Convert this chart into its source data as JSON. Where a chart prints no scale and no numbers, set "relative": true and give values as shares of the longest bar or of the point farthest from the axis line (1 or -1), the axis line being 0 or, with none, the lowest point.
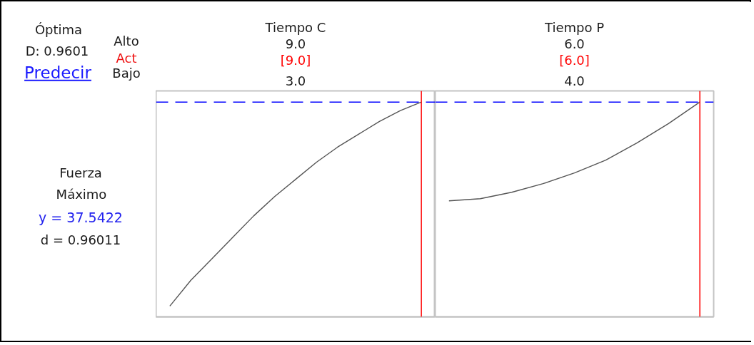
{
  "chart_data": [
    {
      "type": "other",
      "annotations": [
        "Óptima",
        "D: 0.9601",
        "Predecir",
        "Alto",
        "Act",
        "Bajo",
        "Fuerza",
        "Máximo",
        "y = 37.5422",
        "d = 0.96011"
      ]
    },
    {
      "type": "line",
      "title": "Tiempo C",
      "annotations": [
        "9.0",
        "3.0"
      ],
      "relative": true,
      "categories": [
        null,
        null,
        null,
        null,
        null,
        null,
        null,
        null,
        null,
        null,
        null,
        null,
        null
      ],
      "series": [
        {
          "color": "#555555",
          "values": [
            0.05,
            0.17,
            0.27,
            0.37,
            0.47,
            0.56,
            0.64,
            0.72,
            0.79,
            0.85,
            0.91,
            0.96,
            1
          ]
        }
      ],
      "ref_lines": [
        {
          "axis": "x",
          "label": "[9.0]",
          "color": "#ff0000"
        },
        {
          "axis": "y",
          "value": 1,
          "color": "#0000ff",
          "line_style": "dashed"
        }
      ],
      "marker": "none",
      "line_style": "solid"
    },
    {
      "type": "line",
      "title": "Tiempo P",
      "annotations": [
        "6.0",
        "4.0"
      ],
      "relative": true,
      "categories": [
        null,
        null,
        null,
        null,
        null,
        null,
        null,
        null,
        null
      ],
      "series": [
        {
          "color": "#555555",
          "values": [
            0.54,
            0.55,
            0.58,
            0.62,
            0.67,
            0.73,
            0.81,
            0.9,
            1
          ]
        }
      ],
      "ref_lines": [
        {
          "axis": "x",
          "label": "[6.0]",
          "color": "#ff0000"
        },
        {
          "axis": "y",
          "value": 1,
          "color": "#0000ff",
          "line_style": "dashed"
        }
      ],
      "marker": "none",
      "line_style": "solid"
    }
  ]
}
